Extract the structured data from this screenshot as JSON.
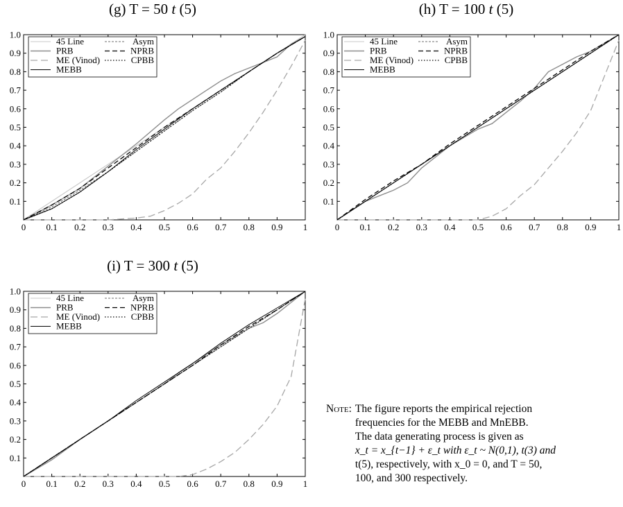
{
  "chart_data": [
    {
      "panel": "g",
      "type": "line",
      "title_prefix": "(g) T = 50 ",
      "title_dist": "t",
      "title_suffix": " (5)",
      "xlim": [
        0,
        1
      ],
      "ylim": [
        0,
        1
      ],
      "xticks": [
        "0",
        "0.1",
        "0.2",
        "0.3",
        "0.4",
        "0.5",
        "0.6",
        "0.7",
        "0.8",
        "0.9",
        "1"
      ],
      "yticks": [
        "0.1",
        "0.2",
        "0.3",
        "0.4",
        "0.5",
        "0.6",
        "0.7",
        "0.8",
        "0.9",
        "1.0"
      ],
      "legend": "top-left",
      "series": [
        {
          "name": "45 Line",
          "style": "45line",
          "x": [
            0,
            1
          ],
          "y": [
            0,
            1
          ]
        },
        {
          "name": "Asym",
          "style": "asym",
          "x": [
            0,
            0.1,
            0.2,
            0.3,
            0.4,
            0.5,
            0.6,
            0.7,
            0.8,
            0.9,
            1
          ],
          "y": [
            0,
            0.07,
            0.16,
            0.26,
            0.37,
            0.48,
            0.59,
            0.69,
            0.8,
            0.9,
            0.99
          ]
        },
        {
          "name": "PRB",
          "style": "prb",
          "x": [
            0,
            0.05,
            0.1,
            0.2,
            0.3,
            0.4,
            0.5,
            0.55,
            0.6,
            0.65,
            0.7,
            0.75,
            0.8,
            0.85,
            0.9,
            0.95,
            1
          ],
          "y": [
            0,
            0.04,
            0.08,
            0.17,
            0.29,
            0.41,
            0.54,
            0.6,
            0.65,
            0.7,
            0.75,
            0.79,
            0.82,
            0.85,
            0.88,
            0.95,
            0.99
          ]
        },
        {
          "name": "NPRB",
          "style": "nprb",
          "x": [
            0,
            0.1,
            0.2,
            0.3,
            0.4,
            0.5,
            0.6,
            0.7,
            0.8,
            0.9,
            1
          ],
          "y": [
            0,
            0.08,
            0.17,
            0.28,
            0.39,
            0.5,
            0.6,
            0.7,
            0.8,
            0.9,
            0.99
          ]
        },
        {
          "name": "ME (Vinod)",
          "style": "me",
          "x": [
            0,
            0.3,
            0.4,
            0.45,
            0.5,
            0.55,
            0.6,
            0.65,
            0.7,
            0.75,
            0.8,
            0.85,
            0.9,
            0.95,
            1
          ],
          "y": [
            0,
            0,
            0.01,
            0.02,
            0.05,
            0.09,
            0.14,
            0.22,
            0.28,
            0.37,
            0.47,
            0.58,
            0.7,
            0.83,
            0.97
          ]
        },
        {
          "name": "CPBB",
          "style": "cpbb",
          "x": [
            0,
            0.1,
            0.2,
            0.3,
            0.4,
            0.5,
            0.6,
            0.7,
            0.8,
            0.9,
            1
          ],
          "y": [
            0,
            0.06,
            0.15,
            0.26,
            0.37,
            0.48,
            0.59,
            0.69,
            0.8,
            0.9,
            0.99
          ]
        },
        {
          "name": "MEBB",
          "style": "mebb",
          "x": [
            0,
            0.1,
            0.2,
            0.3,
            0.4,
            0.5,
            0.6,
            0.7,
            0.8,
            0.9,
            1
          ],
          "y": [
            0,
            0.06,
            0.15,
            0.26,
            0.38,
            0.49,
            0.6,
            0.7,
            0.8,
            0.9,
            0.99
          ]
        }
      ]
    },
    {
      "panel": "h",
      "type": "line",
      "title_prefix": "(h) T = 100 ",
      "title_dist": "t",
      "title_suffix": " (5)",
      "xlim": [
        0,
        1
      ],
      "ylim": [
        0,
        1
      ],
      "xticks": [
        "0",
        "0.1",
        "0.2",
        "0.3",
        "0.4",
        "0.5",
        "0.6",
        "0.7",
        "0.8",
        "0.9",
        "1"
      ],
      "yticks": [
        "0.1",
        "0.2",
        "0.3",
        "0.4",
        "0.5",
        "0.6",
        "0.7",
        "0.8",
        "0.9",
        "1.0"
      ],
      "legend": "top-left",
      "series": [
        {
          "name": "45 Line",
          "style": "45line",
          "x": [
            0,
            1
          ],
          "y": [
            0,
            1
          ]
        },
        {
          "name": "Asym",
          "style": "asym",
          "x": [
            0,
            0.1,
            0.2,
            0.3,
            0.4,
            0.5,
            0.6,
            0.7,
            0.8,
            0.9,
            1
          ],
          "y": [
            0,
            0.1,
            0.2,
            0.3,
            0.4,
            0.5,
            0.6,
            0.7,
            0.8,
            0.9,
            1.0
          ]
        },
        {
          "name": "PRB",
          "style": "prb",
          "x": [
            0,
            0.1,
            0.2,
            0.25,
            0.3,
            0.4,
            0.5,
            0.55,
            0.6,
            0.65,
            0.7,
            0.75,
            0.8,
            0.85,
            0.9,
            1
          ],
          "y": [
            0,
            0.1,
            0.16,
            0.2,
            0.28,
            0.4,
            0.49,
            0.52,
            0.58,
            0.64,
            0.71,
            0.8,
            0.84,
            0.88,
            0.91,
            1.0
          ]
        },
        {
          "name": "NPRB",
          "style": "nprb",
          "x": [
            0,
            0.1,
            0.2,
            0.3,
            0.4,
            0.5,
            0.6,
            0.7,
            0.8,
            0.9,
            1
          ],
          "y": [
            0,
            0.11,
            0.21,
            0.3,
            0.41,
            0.51,
            0.61,
            0.71,
            0.81,
            0.91,
            1.0
          ]
        },
        {
          "name": "ME (Vinod)",
          "style": "me",
          "x": [
            0,
            0.5,
            0.55,
            0.6,
            0.65,
            0.7,
            0.75,
            0.8,
            0.85,
            0.9,
            0.95,
            1
          ],
          "y": [
            0,
            0,
            0.02,
            0.06,
            0.13,
            0.19,
            0.28,
            0.37,
            0.47,
            0.59,
            0.78,
            0.97
          ]
        },
        {
          "name": "CPBB",
          "style": "cpbb",
          "x": [
            0,
            0.1,
            0.2,
            0.3,
            0.4,
            0.5,
            0.6,
            0.7,
            0.8,
            0.9,
            1
          ],
          "y": [
            0,
            0.1,
            0.2,
            0.3,
            0.4,
            0.5,
            0.6,
            0.7,
            0.8,
            0.9,
            1.0
          ]
        },
        {
          "name": "MEBB",
          "style": "mebb",
          "x": [
            0,
            0.1,
            0.2,
            0.3,
            0.4,
            0.5,
            0.6,
            0.7,
            0.8,
            0.9,
            1
          ],
          "y": [
            0,
            0.1,
            0.2,
            0.3,
            0.4,
            0.5,
            0.6,
            0.7,
            0.8,
            0.9,
            1.0
          ]
        }
      ]
    },
    {
      "panel": "i",
      "type": "line",
      "title_prefix": "(i) T = 300 ",
      "title_dist": "t",
      "title_suffix": " (5)",
      "xlim": [
        0,
        1
      ],
      "ylim": [
        0,
        1
      ],
      "xticks": [
        "0",
        "0.1",
        "0.2",
        "0.3",
        "0.4",
        "0.5",
        "0.6",
        "0.7",
        "0.8",
        "0.9",
        "1"
      ],
      "yticks": [
        "0.1",
        "0.2",
        "0.3",
        "0.4",
        "0.5",
        "0.6",
        "0.7",
        "0.8",
        "0.9",
        "1.0"
      ],
      "legend": "top-left",
      "series": [
        {
          "name": "45 Line",
          "style": "45line",
          "x": [
            0,
            1
          ],
          "y": [
            0,
            1
          ]
        },
        {
          "name": "Asym",
          "style": "asym",
          "x": [
            0,
            0.1,
            0.2,
            0.3,
            0.4,
            0.5,
            0.6,
            0.7,
            0.8,
            0.9,
            1
          ],
          "y": [
            0,
            0.1,
            0.2,
            0.3,
            0.4,
            0.5,
            0.6,
            0.7,
            0.8,
            0.9,
            1.0
          ]
        },
        {
          "name": "PRB",
          "style": "prb",
          "x": [
            0,
            0.1,
            0.2,
            0.3,
            0.4,
            0.5,
            0.55,
            0.6,
            0.7,
            0.8,
            0.85,
            0.9,
            1
          ],
          "y": [
            0,
            0.09,
            0.2,
            0.3,
            0.4,
            0.5,
            0.56,
            0.61,
            0.71,
            0.8,
            0.83,
            0.88,
            1.0
          ]
        },
        {
          "name": "NPRB",
          "style": "nprb",
          "x": [
            0,
            0.1,
            0.2,
            0.3,
            0.4,
            0.5,
            0.6,
            0.7,
            0.8,
            0.9,
            1
          ],
          "y": [
            0,
            0.1,
            0.2,
            0.3,
            0.4,
            0.5,
            0.6,
            0.71,
            0.81,
            0.9,
            1.0
          ]
        },
        {
          "name": "ME (Vinod)",
          "style": "me",
          "x": [
            0,
            0.55,
            0.6,
            0.65,
            0.7,
            0.75,
            0.8,
            0.85,
            0.9,
            0.95,
            1
          ],
          "y": [
            0,
            0,
            0.01,
            0.04,
            0.08,
            0.13,
            0.2,
            0.28,
            0.38,
            0.54,
            0.96
          ]
        },
        {
          "name": "CPBB",
          "style": "cpbb",
          "x": [
            0,
            0.1,
            0.2,
            0.3,
            0.4,
            0.5,
            0.6,
            0.7,
            0.8,
            0.9,
            1
          ],
          "y": [
            0,
            0.1,
            0.2,
            0.3,
            0.4,
            0.5,
            0.6,
            0.7,
            0.8,
            0.9,
            1.0
          ]
        },
        {
          "name": "MEBB",
          "style": "mebb",
          "x": [
            0,
            0.1,
            0.2,
            0.3,
            0.4,
            0.5,
            0.6,
            0.7,
            0.8,
            0.9,
            1
          ],
          "y": [
            0,
            0.1,
            0.2,
            0.3,
            0.41,
            0.51,
            0.61,
            0.72,
            0.82,
            0.91,
            1.0
          ]
        }
      ]
    }
  ],
  "note": {
    "label": "Note:",
    "lines": [
      "The figure reports the empirical rejection",
      "frequencies for the MEBB and MnEBB.",
      "The data generating process is given as",
      "x_t = x_{t−1} + ε_t  with ε_t ~ N(0,1), t(3) and",
      "t(5), respectively, with x_0 = 0, and T = 50,",
      "100, and 300 respectively."
    ]
  },
  "colors": {
    "45line": "#c8c8c8",
    "asym": "#6e6e6e",
    "prb": "#8c8c8c",
    "nprb": "#000000",
    "me": "#a6a6a6",
    "cpbb": "#000000",
    "mebb": "#000000",
    "axis": "#000000"
  }
}
